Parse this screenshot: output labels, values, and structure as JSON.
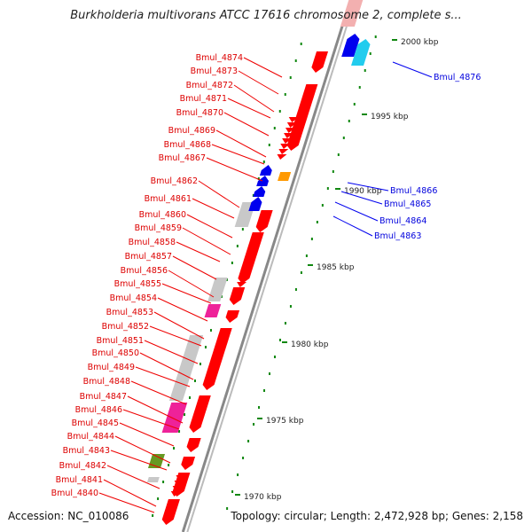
{
  "title": "Burkholderia multivorans ATCC 17616 chromosome 2, complete s...",
  "footer": {
    "accession": "Accession: NC_010086",
    "summary": "Topology: circular; Length: 2,472,928 bp; Genes: 2,158"
  },
  "colors": {
    "reverse_strand_gene": "#ff0000",
    "forward_strand_gene": "#0000ee",
    "backbone": "#888888",
    "tick": "#118811",
    "grey_feature": "#c8c8c8",
    "pink_feature": "#ee2299",
    "olive_feature": "#669922",
    "orange_feature": "#ff9900",
    "cyan_feature": "#22ccee"
  },
  "scale_labels": [
    "2000 kbp",
    "1995 kbp",
    "1990 kbp",
    "1985 kbp",
    "1980 kbp",
    "1975 kbp",
    "1970 kbp"
  ],
  "forward_gene_labels": [
    "Bmul_4876",
    "Bmul_4866",
    "Bmul_4865",
    "Bmul_4864",
    "Bmul_4863"
  ],
  "reverse_gene_labels": [
    "Bmul_4874",
    "Bmul_4873",
    "Bmul_4872",
    "Bmul_4871",
    "Bmul_4870",
    "Bmul_4869",
    "Bmul_4868",
    "Bmul_4867",
    "Bmul_4862",
    "Bmul_4861",
    "Bmul_4860",
    "Bmul_4859",
    "Bmul_4858",
    "Bmul_4857",
    "Bmul_4856",
    "Bmul_4855",
    "Bmul_4854",
    "Bmul_4853",
    "Bmul_4852",
    "Bmul_4851",
    "Bmul_4850",
    "Bmul_4849",
    "Bmul_4848",
    "Bmul_4847",
    "Bmul_4846",
    "Bmul_4845",
    "Bmul_4844",
    "Bmul_4843",
    "Bmul_4842",
    "Bmul_4841",
    "Bmul_4840"
  ]
}
